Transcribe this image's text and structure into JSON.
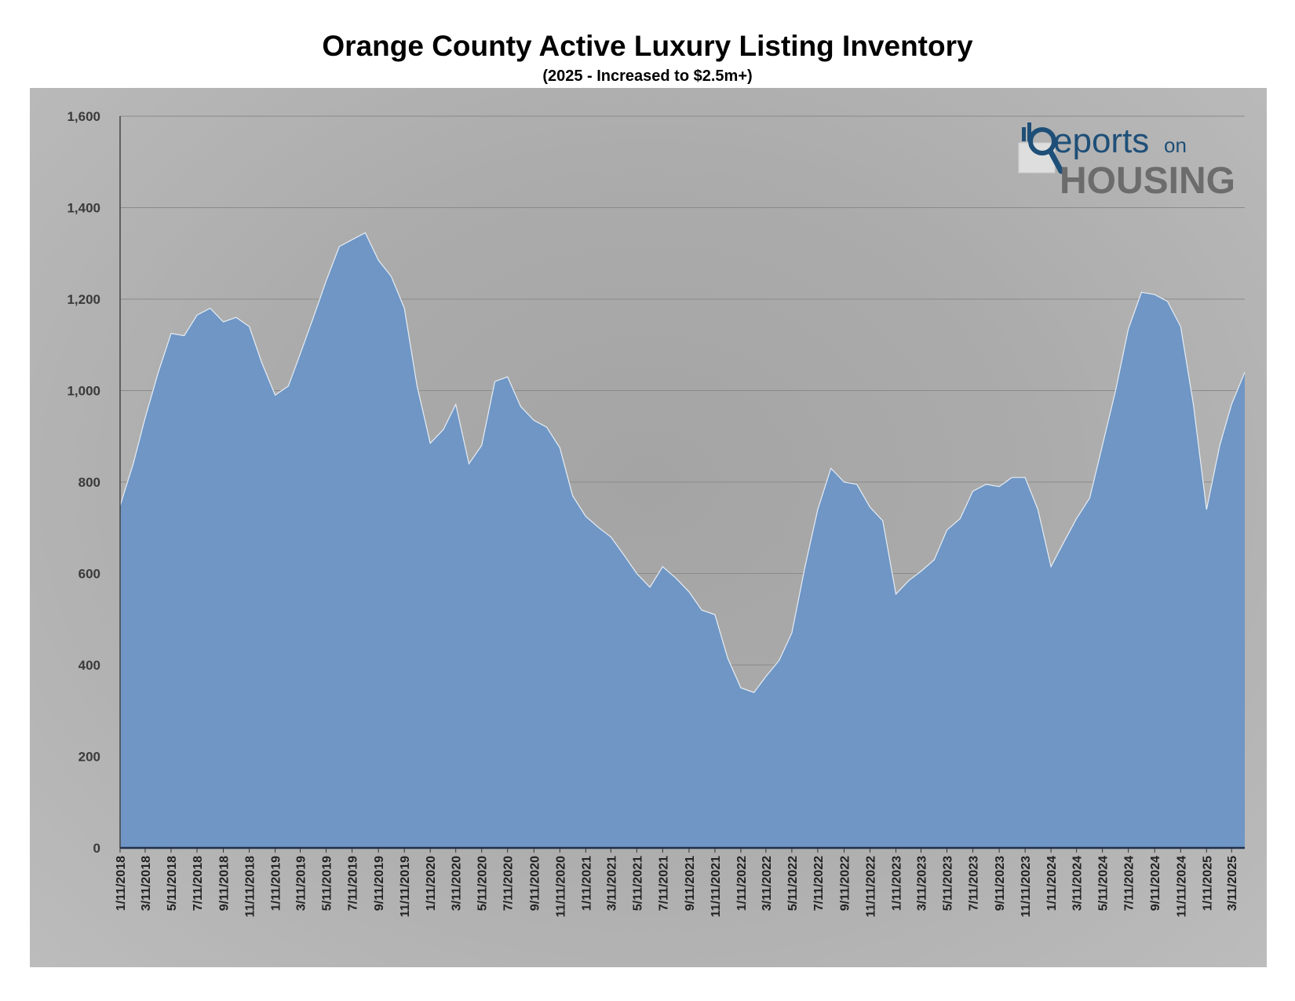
{
  "chart_data": {
    "type": "area",
    "title": "Orange County Active Luxury Listing Inventory",
    "subtitle": "(2025 - Increased to $2.5m+)",
    "xlabel": "",
    "ylabel": "",
    "ylim": [
      0,
      1600
    ],
    "yticks": [
      "0",
      "200",
      "400",
      "600",
      "800",
      "1,000",
      "1,200",
      "1,400",
      "1,600"
    ],
    "xticks": [
      "1/11/2018",
      "3/11/2018",
      "5/11/2018",
      "7/11/2018",
      "9/11/2018",
      "11/11/2018",
      "1/11/2019",
      "3/11/2019",
      "5/11/2019",
      "7/11/2019",
      "9/11/2019",
      "11/11/2019",
      "1/11/2020",
      "3/11/2020",
      "5/11/2020",
      "7/11/2020",
      "9/11/2020",
      "11/11/2020",
      "1/11/2021",
      "3/11/2021",
      "5/11/2021",
      "7/11/2021",
      "9/11/2021",
      "11/11/2021",
      "1/11/2022",
      "3/11/2022",
      "5/11/2022",
      "7/11/2022",
      "9/11/2022",
      "11/11/2022",
      "1/11/2023",
      "3/11/2023",
      "5/11/2023",
      "7/11/2023",
      "9/11/2023",
      "11/11/2023",
      "1/11/2024",
      "3/11/2024",
      "5/11/2024",
      "7/11/2024",
      "9/11/2024",
      "11/11/2024",
      "1/11/2025",
      "3/11/2025"
    ],
    "grid": true,
    "fill_color": "#6f96c4",
    "line_color": "#e6edf6",
    "x": [
      "2018-01-11",
      "2018-02-11",
      "2018-03-11",
      "2018-04-11",
      "2018-05-11",
      "2018-06-11",
      "2018-07-11",
      "2018-08-11",
      "2018-09-11",
      "2018-10-11",
      "2018-11-11",
      "2018-12-11",
      "2019-01-11",
      "2019-02-11",
      "2019-03-11",
      "2019-04-11",
      "2019-05-11",
      "2019-06-11",
      "2019-07-11",
      "2019-08-11",
      "2019-09-11",
      "2019-10-11",
      "2019-11-11",
      "2019-12-11",
      "2020-01-11",
      "2020-02-11",
      "2020-03-11",
      "2020-04-11",
      "2020-05-11",
      "2020-06-11",
      "2020-07-11",
      "2020-08-11",
      "2020-09-11",
      "2020-10-11",
      "2020-11-11",
      "2020-12-11",
      "2021-01-11",
      "2021-02-11",
      "2021-03-11",
      "2021-04-11",
      "2021-05-11",
      "2021-06-11",
      "2021-07-11",
      "2021-08-11",
      "2021-09-11",
      "2021-10-11",
      "2021-11-11",
      "2021-12-11",
      "2022-01-11",
      "2022-02-11",
      "2022-03-11",
      "2022-04-11",
      "2022-05-11",
      "2022-06-11",
      "2022-07-11",
      "2022-08-11",
      "2022-09-11",
      "2022-10-11",
      "2022-11-11",
      "2022-12-11",
      "2023-01-11",
      "2023-02-11",
      "2023-03-11",
      "2023-04-11",
      "2023-05-11",
      "2023-06-11",
      "2023-07-11",
      "2023-08-11",
      "2023-09-11",
      "2023-10-11",
      "2023-11-11",
      "2023-12-11",
      "2024-01-11",
      "2024-02-11",
      "2024-03-11",
      "2024-04-11",
      "2024-05-11",
      "2024-06-11",
      "2024-07-11",
      "2024-08-11",
      "2024-09-11",
      "2024-10-11",
      "2024-11-11",
      "2024-12-11",
      "2025-01-11",
      "2025-02-11",
      "2025-03-11",
      "2025-04-11"
    ],
    "values": [
      748,
      840,
      940,
      1040,
      1125,
      1120,
      1165,
      1180,
      1150,
      1160,
      1140,
      1060,
      990,
      1010,
      1080,
      1160,
      1240,
      1315,
      1330,
      1345,
      1285,
      1250,
      1180,
      1010,
      885,
      915,
      970,
      840,
      880,
      1020,
      1030,
      965,
      935,
      920,
      875,
      770,
      725,
      700,
      680,
      640,
      600,
      570,
      615,
      590,
      560,
      520,
      510,
      415,
      350,
      340,
      375,
      410,
      470,
      615,
      740,
      830,
      800,
      795,
      745,
      715,
      555,
      585,
      605,
      630,
      695,
      720,
      780,
      795,
      790,
      810,
      810,
      740,
      615,
      670,
      720,
      765,
      880,
      1000,
      1135,
      1215,
      1210,
      1195,
      1140,
      970,
      740,
      880,
      970,
      1040
    ]
  }
}
